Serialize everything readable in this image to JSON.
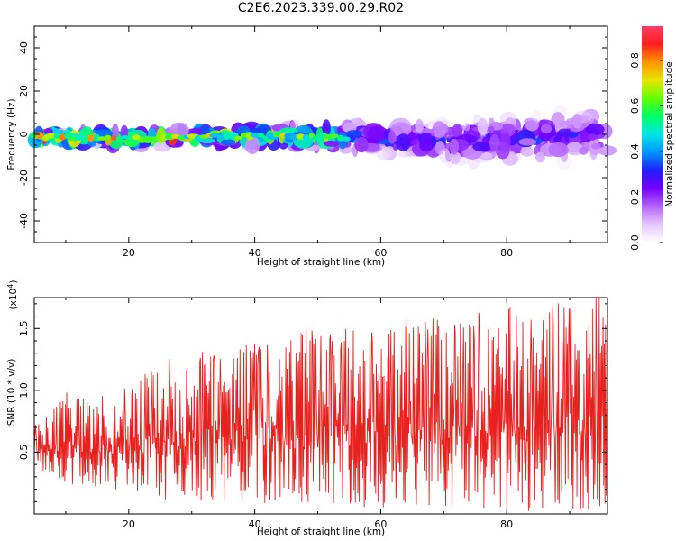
{
  "title": "C2E6.2023.339.00.29.R02",
  "chart_data": [
    {
      "type": "heatmap",
      "xlabel": "Height of straight line (km)",
      "ylabel": "Frequency (Hz)",
      "xlim": [
        5,
        96
      ],
      "ylim": [
        -50,
        50
      ],
      "xticks": [
        20,
        40,
        60,
        80
      ],
      "yticks": [
        -40,
        -20,
        0,
        20,
        40
      ],
      "colorbar": {
        "label": "Normalized spectral amplitude",
        "range": [
          0,
          0.95
        ],
        "ticks": [
          "0.0",
          "0.2",
          "0.4",
          "0.6",
          "0.8"
        ],
        "colors": [
          "#ffffff",
          "#e6c8ff",
          "#b464ff",
          "#7800ff",
          "#1e1eff",
          "#0096ff",
          "#00e6e6",
          "#00ff64",
          "#64ff00",
          "#e6e600",
          "#ff9600",
          "#ff1e1e",
          "#ff3c64"
        ]
      },
      "band": [
        {
          "x": 5,
          "center": -1,
          "halfwidth": 2,
          "peak": 0.85
        },
        {
          "x": 20,
          "center": -2,
          "halfwidth": 2.5,
          "peak": 0.85
        },
        {
          "x": 35,
          "center": -1,
          "halfwidth": 3,
          "peak": 0.75
        },
        {
          "x": 50,
          "center": -1,
          "halfwidth": 4,
          "peak": 0.75
        },
        {
          "x": 60,
          "center": -2,
          "halfwidth": 5,
          "peak": 0.35
        },
        {
          "x": 75,
          "center": -3,
          "halfwidth": 7,
          "peak": 0.35
        },
        {
          "x": 96,
          "center": 0,
          "halfwidth": 8,
          "peak": 0.3
        }
      ]
    },
    {
      "type": "line",
      "xlabel": "Height of straight line (km)",
      "ylabel": "SNR (10 * v/v)",
      "exponent_label": "(x10",
      "exponent_power": "4",
      "exponent_close": ")",
      "xlim": [
        5,
        96
      ],
      "ylim": [
        0,
        1.75
      ],
      "xticks": [
        20,
        40,
        60,
        80
      ],
      "yticks": [
        0.5,
        1.0,
        1.5
      ],
      "ytick_labels": [
        "0.5",
        "1.0",
        "1.5"
      ],
      "color": "#e8201e",
      "envelope": [
        {
          "x": 5,
          "low": 0.35,
          "high": 0.7
        },
        {
          "x": 10,
          "low": 0.25,
          "high": 0.95
        },
        {
          "x": 15,
          "low": 0.2,
          "high": 0.9
        },
        {
          "x": 20,
          "low": 0.18,
          "high": 1.05
        },
        {
          "x": 25,
          "low": 0.12,
          "high": 1.2
        },
        {
          "x": 35,
          "low": 0.1,
          "high": 1.3
        },
        {
          "x": 45,
          "low": 0.05,
          "high": 1.4
        },
        {
          "x": 60,
          "low": 0.03,
          "high": 1.5
        },
        {
          "x": 75,
          "low": 0.02,
          "high": 1.55
        },
        {
          "x": 96,
          "low": 0.02,
          "high": 1.7
        }
      ]
    }
  ]
}
